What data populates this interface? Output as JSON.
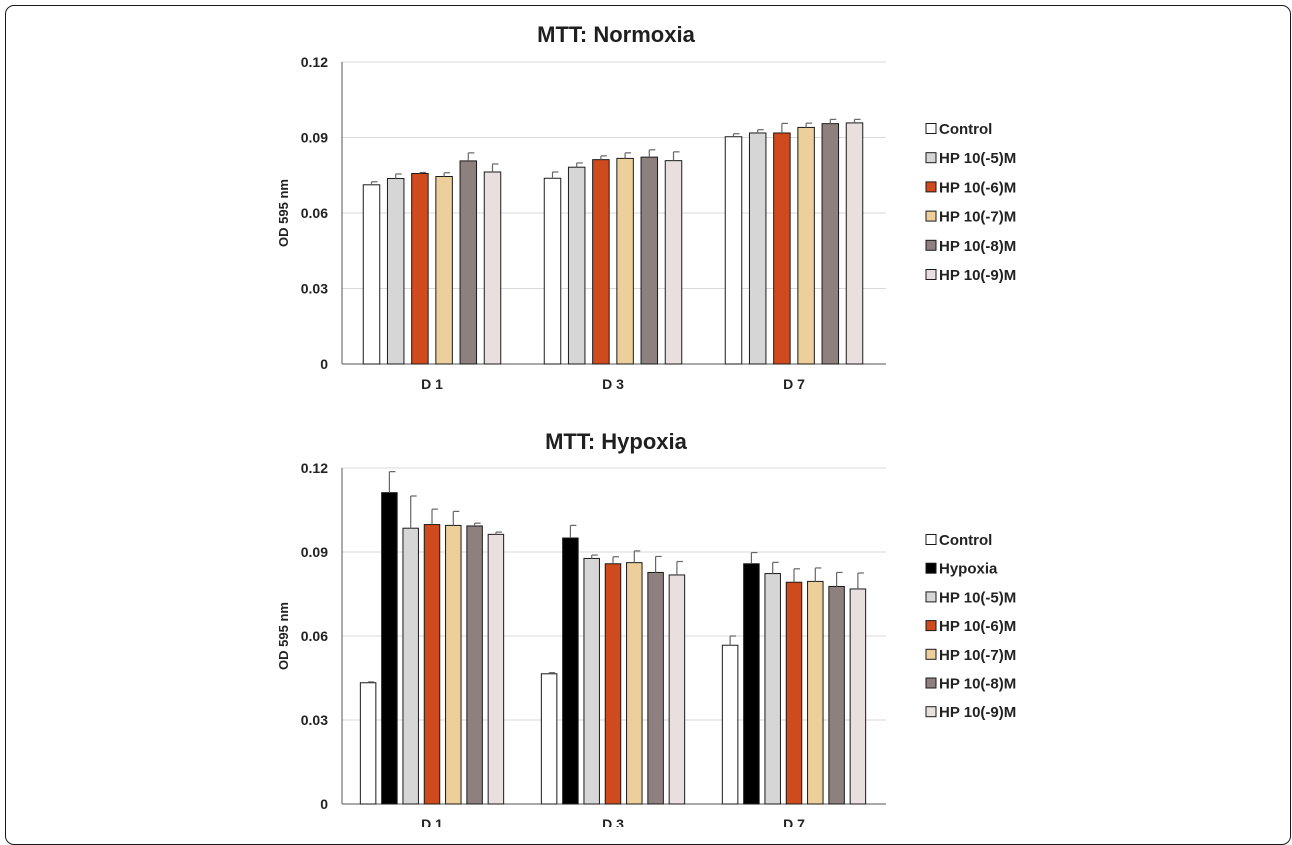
{
  "colors": {
    "Control": "#ffffff",
    "Hypoxia": "#000000",
    "HP 10(-5)M": "#d6d6d6",
    "HP 10(-6)M": "#cf4a1c",
    "HP 10(-7)M": "#eccf9a",
    "HP 10(-8)M": "#8f8080",
    "HP 10(-9)M": "#eadfdf"
  },
  "chart_data": [
    {
      "type": "bar",
      "title": "MTT: Normoxia",
      "ylabel": "OD 595 nm",
      "xlabel": "",
      "ylim": [
        0,
        0.12
      ],
      "yticks": [
        "0",
        "0.03",
        "0.06",
        "0.09",
        "0.12"
      ],
      "categories": [
        "D 1",
        "D 3",
        "D 7"
      ],
      "grid": true,
      "legend_position": "right",
      "series": [
        {
          "name": "Control",
          "values": [
            0.0712,
            0.0738,
            0.0903
          ],
          "errors": [
            0.0012,
            0.0025,
            0.0012
          ]
        },
        {
          "name": "HP 10(-5)M",
          "values": [
            0.0737,
            0.0782,
            0.0918
          ],
          "errors": [
            0.0018,
            0.0017,
            0.0013
          ]
        },
        {
          "name": "HP 10(-6)M",
          "values": [
            0.0757,
            0.0812,
            0.0918
          ],
          "errors": [
            0.0004,
            0.0015,
            0.0038
          ]
        },
        {
          "name": "HP 10(-7)M",
          "values": [
            0.0745,
            0.0817,
            0.094
          ],
          "errors": [
            0.0015,
            0.0022,
            0.0017
          ]
        },
        {
          "name": "HP 10(-8)M",
          "values": [
            0.0807,
            0.0822,
            0.0955
          ],
          "errors": [
            0.0032,
            0.0029,
            0.0017
          ]
        },
        {
          "name": "HP 10(-9)M",
          "values": [
            0.0763,
            0.0808,
            0.0958
          ],
          "errors": [
            0.0032,
            0.0035,
            0.0014
          ]
        }
      ]
    },
    {
      "type": "bar",
      "title": "MTT: Hypoxia",
      "ylabel": "OD 595 nm",
      "xlabel": "",
      "ylim": [
        0,
        0.12
      ],
      "yticks": [
        "0",
        "0.03",
        "0.06",
        "0.09",
        "0.12"
      ],
      "categories": [
        "D 1",
        "D 3",
        "D 7"
      ],
      "grid": true,
      "legend_position": "right",
      "series": [
        {
          "name": "Control",
          "values": [
            0.0433,
            0.0465,
            0.0567
          ],
          "errors": [
            0.0003,
            0.0004,
            0.0033
          ]
        },
        {
          "name": "Hypoxia",
          "values": [
            0.1112,
            0.095,
            0.0858
          ],
          "errors": [
            0.0075,
            0.0045,
            0.004
          ]
        },
        {
          "name": "HP 10(-5)M",
          "values": [
            0.0985,
            0.0877,
            0.0823
          ],
          "errors": [
            0.0115,
            0.0012,
            0.004
          ]
        },
        {
          "name": "HP 10(-6)M",
          "values": [
            0.0998,
            0.0858,
            0.0792
          ],
          "errors": [
            0.0055,
            0.0025,
            0.0048
          ]
        },
        {
          "name": "HP 10(-7)M",
          "values": [
            0.0995,
            0.0862,
            0.0795
          ],
          "errors": [
            0.005,
            0.0042,
            0.0048
          ]
        },
        {
          "name": "HP 10(-8)M",
          "values": [
            0.0993,
            0.0827,
            0.0777
          ],
          "errors": [
            0.001,
            0.0057,
            0.005
          ]
        },
        {
          "name": "HP 10(-9)M",
          "values": [
            0.0963,
            0.0818,
            0.0768
          ],
          "errors": [
            0.0008,
            0.0048,
            0.0057
          ]
        }
      ]
    }
  ]
}
